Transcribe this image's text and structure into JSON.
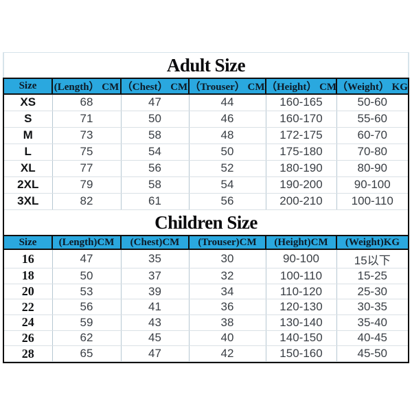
{
  "adult": {
    "title": "Adult Size",
    "headers": [
      "Size",
      "(Length） CM",
      "（Chest） CM",
      "（Trouser） CM",
      "（Height） CM",
      "（Weight） KG"
    ],
    "rows": [
      [
        "XS",
        "68",
        "47",
        "44",
        "160-165",
        "50-60"
      ],
      [
        "S",
        "71",
        "50",
        "46",
        "160-170",
        "55-60"
      ],
      [
        "M",
        "73",
        "58",
        "48",
        "172-175",
        "60-70"
      ],
      [
        "L",
        "75",
        "54",
        "50",
        "175-180",
        "70-80"
      ],
      [
        "XL",
        "77",
        "56",
        "52",
        "180-190",
        "80-90"
      ],
      [
        "2XL",
        "79",
        "58",
        "54",
        "190-200",
        "90-100"
      ],
      [
        "3XL",
        "82",
        "61",
        "56",
        "200-210",
        "100-110"
      ]
    ]
  },
  "children": {
    "title": "Children Size",
    "headers": [
      "Size",
      "(Length)CM",
      "(Chest)CM",
      "(Trouser)CM",
      "(Height)CM",
      "(Weight)KG"
    ],
    "rows": [
      [
        "16",
        "47",
        "35",
        "30",
        "90-100",
        "15以下"
      ],
      [
        "18",
        "50",
        "37",
        "32",
        "100-110",
        "15-25"
      ],
      [
        "20",
        "53",
        "39",
        "34",
        "110-120",
        "25-30"
      ],
      [
        "22",
        "56",
        "41",
        "36",
        "120-130",
        "30-35"
      ],
      [
        "24",
        "59",
        "43",
        "38",
        "130-140",
        "35-40"
      ],
      [
        "26",
        "62",
        "45",
        "40",
        "140-150",
        "40-45"
      ],
      [
        "28",
        "65",
        "47",
        "42",
        "150-160",
        "45-50"
      ]
    ]
  },
  "colors": {
    "header_background": "#2aa8df",
    "header_text": "#0c1a26",
    "outer_border": "#0f0f0f",
    "grid_vertical": "#b6c7d2",
    "grid_horizontal": "#d9e0e5",
    "data_text": "#393e44",
    "title_text": "#0b0b0d"
  }
}
